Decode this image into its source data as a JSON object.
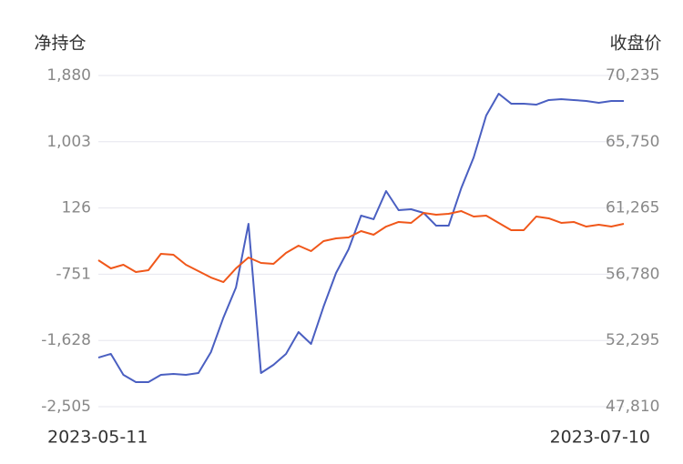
{
  "chart_data": {
    "type": "line",
    "y_label": "净持仓",
    "y2_label": "收盘价",
    "categories": [
      "2023-05-11",
      null,
      null,
      null,
      null,
      null,
      null,
      null,
      null,
      null,
      null,
      null,
      null,
      null,
      null,
      null,
      null,
      null,
      null,
      null,
      null,
      null,
      null,
      null,
      null,
      null,
      null,
      null,
      null,
      null,
      null,
      null,
      null,
      null,
      null,
      null,
      null,
      null,
      null,
      null,
      null,
      null,
      "2023-07-10"
    ],
    "ylim": [
      -2505,
      1880
    ],
    "yticks": [
      {
        "value": 1880,
        "label": "1,880"
      },
      {
        "value": 1003,
        "label": "1,003"
      },
      126,
      -751,
      {
        "value": -1628,
        "label": "-1,628"
      },
      {
        "value": -2505,
        "label": "-2,505"
      }
    ],
    "y2lim": [
      47810,
      70235
    ],
    "y2ticks": [
      {
        "value": 70235,
        "label": "70,235"
      },
      {
        "value": 65750,
        "label": "65,750"
      },
      {
        "value": 61265,
        "label": "61,265"
      },
      {
        "value": 56780,
        "label": "56,780"
      },
      {
        "value": 52295,
        "label": "52,295"
      },
      {
        "value": 47810,
        "label": "47,810"
      }
    ],
    "grid": true,
    "series": [
      {
        "color": "#4a5fc1",
        "axis": "y",
        "values": [
          -1855,
          -1806,
          -2083,
          -2180,
          -2180,
          -2083,
          -2071,
          -2083,
          -2059,
          -1782,
          -1324,
          -927,
          -84,
          -2059,
          -1951,
          -1806,
          -1517,
          -1674,
          -1180,
          -734,
          -421,
          25,
          -23,
          350,
          97,
          109,
          61,
          -108,
          -108,
          386,
          796,
          1350,
          1639,
          1507,
          1507,
          1494,
          1555,
          1567,
          1555,
          1543,
          1519,
          1543,
          1543
        ]
      },
      {
        "color": "#f0571a",
        "axis": "y2",
        "values": [
          57729,
          57174,
          57421,
          56928,
          57051,
          58160,
          58099,
          57421,
          56990,
          56558,
          56250,
          57174,
          57914,
          57544,
          57483,
          58222,
          58715,
          58345,
          59023,
          59207,
          59269,
          59700,
          59454,
          60008,
          60317,
          60255,
          60933,
          60810,
          60872,
          61057,
          60686,
          60748,
          60255,
          59762,
          59762,
          60686,
          60563,
          60255,
          60317,
          60008,
          60132,
          60008,
          60194
        ]
      }
    ]
  }
}
